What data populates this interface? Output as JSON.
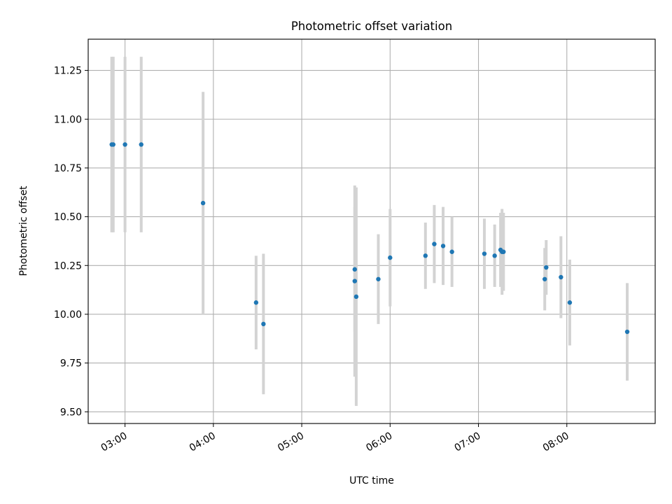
{
  "chart_data": {
    "type": "scatter",
    "title": "Photometric offset variation",
    "xlabel": "UTC time",
    "ylabel": "Photometric offset",
    "grid": true,
    "legend": "none",
    "x_ticks": [
      "03:00",
      "04:00",
      "05:00",
      "06:00",
      "07:00",
      "08:00"
    ],
    "y_ticks": [
      "9.50",
      "9.75",
      "10.00",
      "10.25",
      "10.50",
      "10.75",
      "11.00",
      "11.25"
    ],
    "xlim": [
      "02:35",
      "09:00"
    ],
    "ylim": [
      9.44,
      11.41
    ],
    "colors": {
      "points": "#1f77b4",
      "error_bars": "#d3d3d3",
      "grid": "#b0b0b0"
    },
    "series": [
      {
        "points": [
          {
            "t": "02:51",
            "y": 10.87,
            "err": 0.45
          },
          {
            "t": "02:52",
            "y": 10.87,
            "err": 0.45
          },
          {
            "t": "03:00",
            "y": 10.87,
            "err": 0.45
          },
          {
            "t": "03:11",
            "y": 10.87,
            "err": 0.45
          },
          {
            "t": "03:53",
            "y": 10.57,
            "err": 0.57
          },
          {
            "t": "04:29",
            "y": 10.06,
            "err": 0.24
          },
          {
            "t": "04:34",
            "y": 9.95,
            "err": 0.36
          },
          {
            "t": "05:36",
            "y": 10.23,
            "err": 0.32
          },
          {
            "t": "05:36",
            "y": 10.17,
            "err": 0.49
          },
          {
            "t": "05:37",
            "y": 10.09,
            "err": 0.56
          },
          {
            "t": "05:52",
            "y": 10.18,
            "err": 0.23
          },
          {
            "t": "06:00",
            "y": 10.29,
            "err": 0.25
          },
          {
            "t": "06:24",
            "y": 10.3,
            "err": 0.17
          },
          {
            "t": "06:30",
            "y": 10.36,
            "err": 0.2
          },
          {
            "t": "06:36",
            "y": 10.35,
            "err": 0.2
          },
          {
            "t": "06:42",
            "y": 10.32,
            "err": 0.18
          },
          {
            "t": "07:04",
            "y": 10.31,
            "err": 0.18
          },
          {
            "t": "07:11",
            "y": 10.3,
            "err": 0.16
          },
          {
            "t": "07:15",
            "y": 10.33,
            "err": 0.19
          },
          {
            "t": "07:16",
            "y": 10.32,
            "err": 0.22
          },
          {
            "t": "07:17",
            "y": 10.32,
            "err": 0.2
          },
          {
            "t": "07:45",
            "y": 10.18,
            "err": 0.16
          },
          {
            "t": "07:46",
            "y": 10.24,
            "err": 0.14
          },
          {
            "t": "07:56",
            "y": 10.19,
            "err": 0.21
          },
          {
            "t": "08:02",
            "y": 10.06,
            "err": 0.22
          },
          {
            "t": "08:41",
            "y": 9.91,
            "err": 0.25
          }
        ]
      }
    ]
  }
}
